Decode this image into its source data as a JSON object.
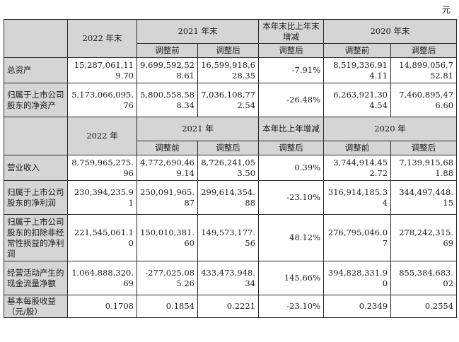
{
  "unit": "元",
  "header1": {
    "col_2022": "2022 年末",
    "col_2021": "2021 年末",
    "col_change": "本年末比上年末增减",
    "col_2020": "2020 年末",
    "before": "调整前",
    "after": "调整后",
    "change_after": "调整后"
  },
  "balance_rows": [
    {
      "label": "总资产",
      "v2022": "15,287,061,119.70",
      "v2021_before": "9,699,592,528.61",
      "v2021_after": "16,599,918,628.35",
      "change": "-7.91%",
      "v2020_before": "8,519,336,914.11",
      "v2020_after": "14,899,056,752.81"
    },
    {
      "label": "归属于上市公司股东的净资产",
      "v2022": "5,173,066,095.76",
      "v2021_before": "5,800,558,588.34",
      "v2021_after": "7,036,108,772.54",
      "change": "-26.48%",
      "v2020_before": "6,263,921,304.54",
      "v2020_after": "7,460,895,476.60"
    }
  ],
  "header2": {
    "col_2022": "2022 年",
    "col_2021": "2021 年",
    "col_change": "本年比上年增减",
    "col_2020": "2020 年",
    "before": "调整前",
    "after": "调整后",
    "change_after": "调整后"
  },
  "income_rows": [
    {
      "label": "营业收入",
      "v2022": "8,759,965,275.96",
      "v2021_before": "4,772,690,469.14",
      "v2021_after": "8,726,241,053.50",
      "change": "0.39%",
      "v2020_before": "3,744,914,452.72",
      "v2020_after": "7,139,915,681.88"
    },
    {
      "label": "归属于上市公司股东的净利润",
      "v2022": "230,394,235.91",
      "v2021_before": "250,091,965.87",
      "v2021_after": "299,614,354.88",
      "change": "-23.10%",
      "v2020_before": "316,914,185.34",
      "v2020_after": "344,497,448.15"
    },
    {
      "label": "归属于上市公司股东的扣除非经常性损益的净利润",
      "v2022": "221,545,061.10",
      "v2021_before": "150,010,381.60",
      "v2021_after": "149,573,177.56",
      "change": "48.12%",
      "v2020_before": "276,795,046.07",
      "v2020_after": "278,242,315.69"
    },
    {
      "label": "经营活动产生的现金流量净额",
      "v2022": "1,064,888,320.69",
      "v2021_before": "-277,025,085.26",
      "v2021_after": "433,473,948.34",
      "change": "145.66%",
      "v2020_before": "394,828,331.90",
      "v2020_after": "855,384,683.02"
    },
    {
      "label": "基本每股收益（元/股）",
      "v2022": "0.1708",
      "v2021_before": "0.1854",
      "v2021_after": "0.2221",
      "change": "-23.10%",
      "v2020_before": "0.2349",
      "v2020_after": "0.2554"
    }
  ]
}
